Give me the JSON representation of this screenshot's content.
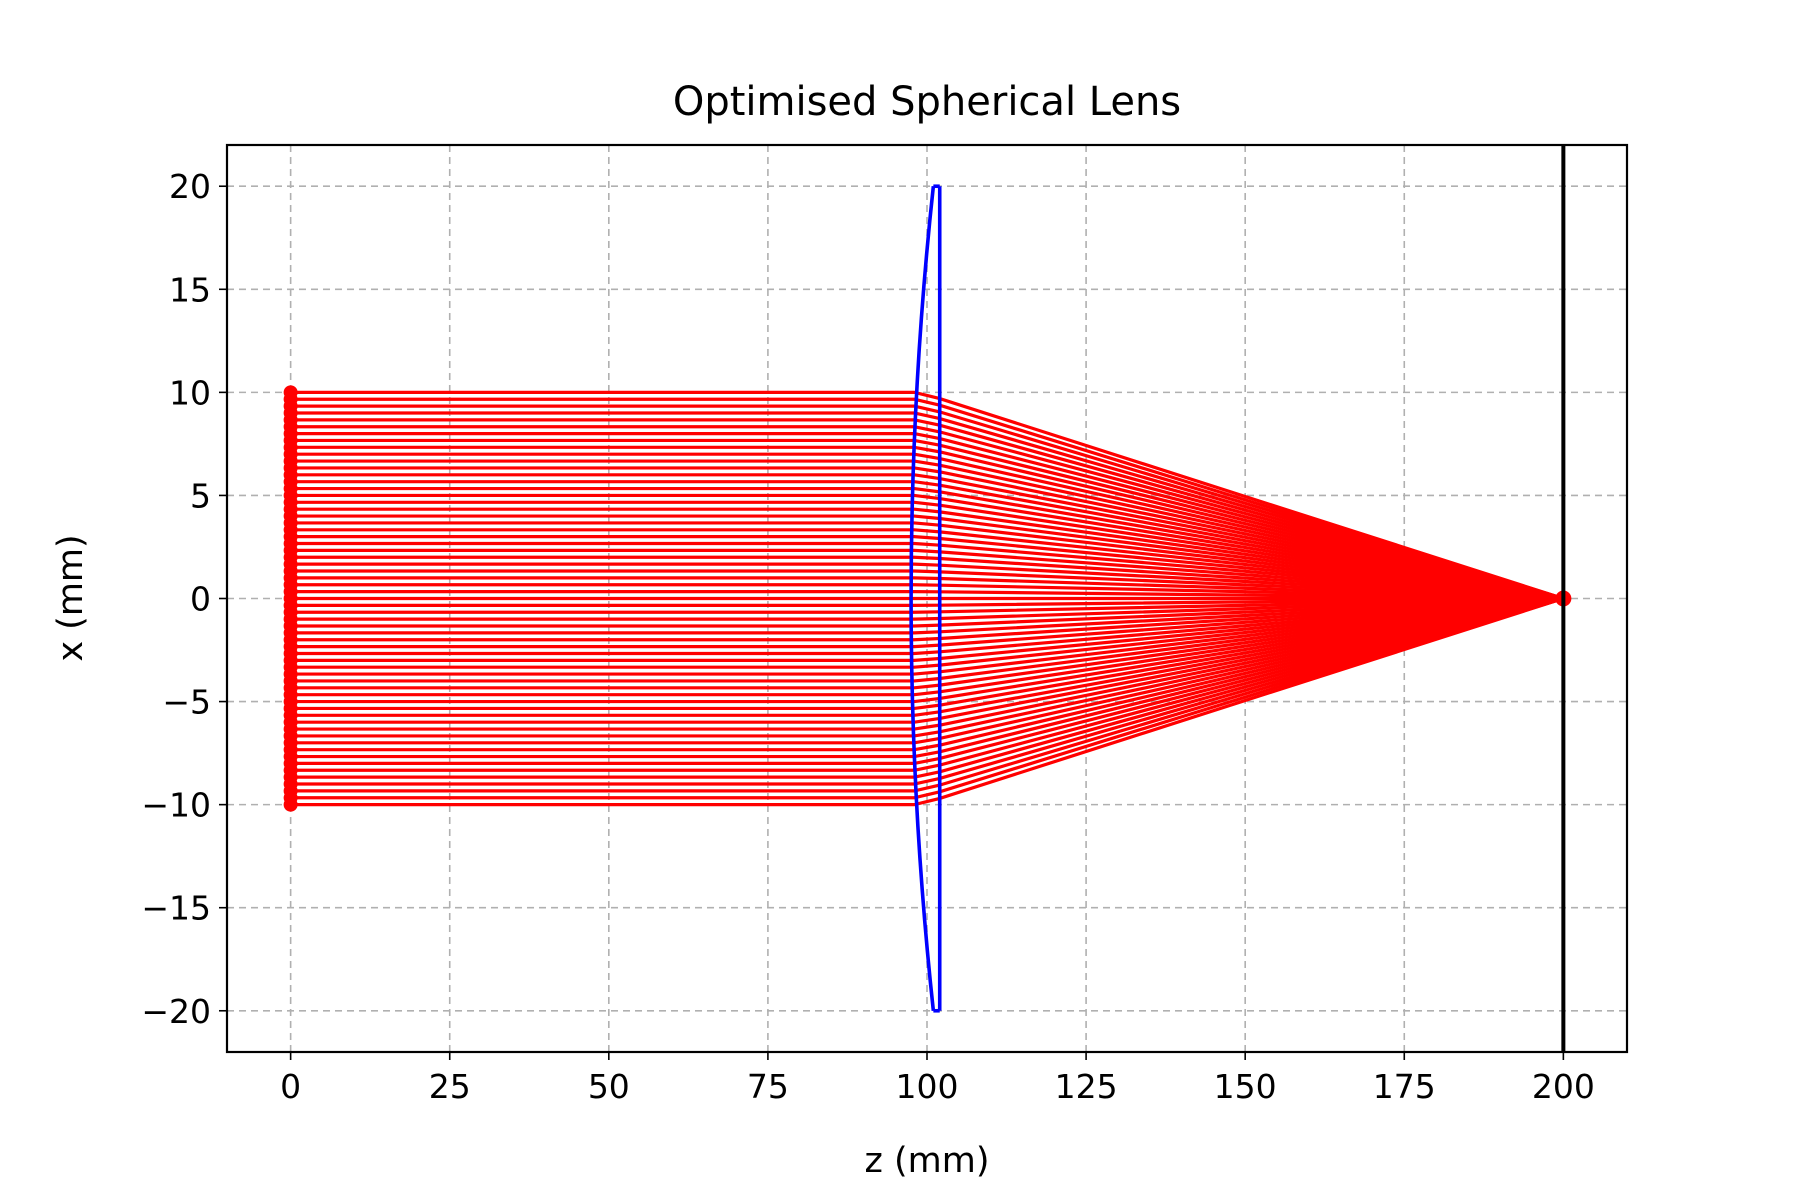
{
  "chart_data": {
    "type": "line",
    "title": "Optimised Spherical Lens",
    "xlabel": "z (mm)",
    "ylabel": "x (mm)",
    "xlim": [
      -10,
      210
    ],
    "ylim": [
      -22,
      22
    ],
    "xticks": [
      0,
      25,
      50,
      75,
      100,
      125,
      150,
      175,
      200
    ],
    "yticks": [
      20,
      15,
      10,
      5,
      0,
      -5,
      -10,
      -15,
      -20
    ],
    "xtick_labels": [
      "0",
      "25",
      "50",
      "75",
      "100",
      "125",
      "150",
      "175",
      "200"
    ],
    "ytick_labels": [
      "20",
      "15",
      "10",
      "5",
      "0",
      "−5",
      "−10",
      "−15",
      "−20"
    ],
    "grid": true,
    "ray_color": "#ff0000",
    "lens_color": "#0000ff",
    "screen_color": "#000000",
    "rays": {
      "source_z": 0,
      "beam_half_width": 10,
      "count": 61,
      "lens_front_z": 98,
      "lens_back_z": 102,
      "focus": [
        200,
        0
      ]
    },
    "lens": {
      "aperture": 20,
      "front_edge_z": 101,
      "front_vertex_z": 97.5,
      "back_edge_z": 102,
      "back_vertex_z": 102
    },
    "screen_z": 200
  }
}
